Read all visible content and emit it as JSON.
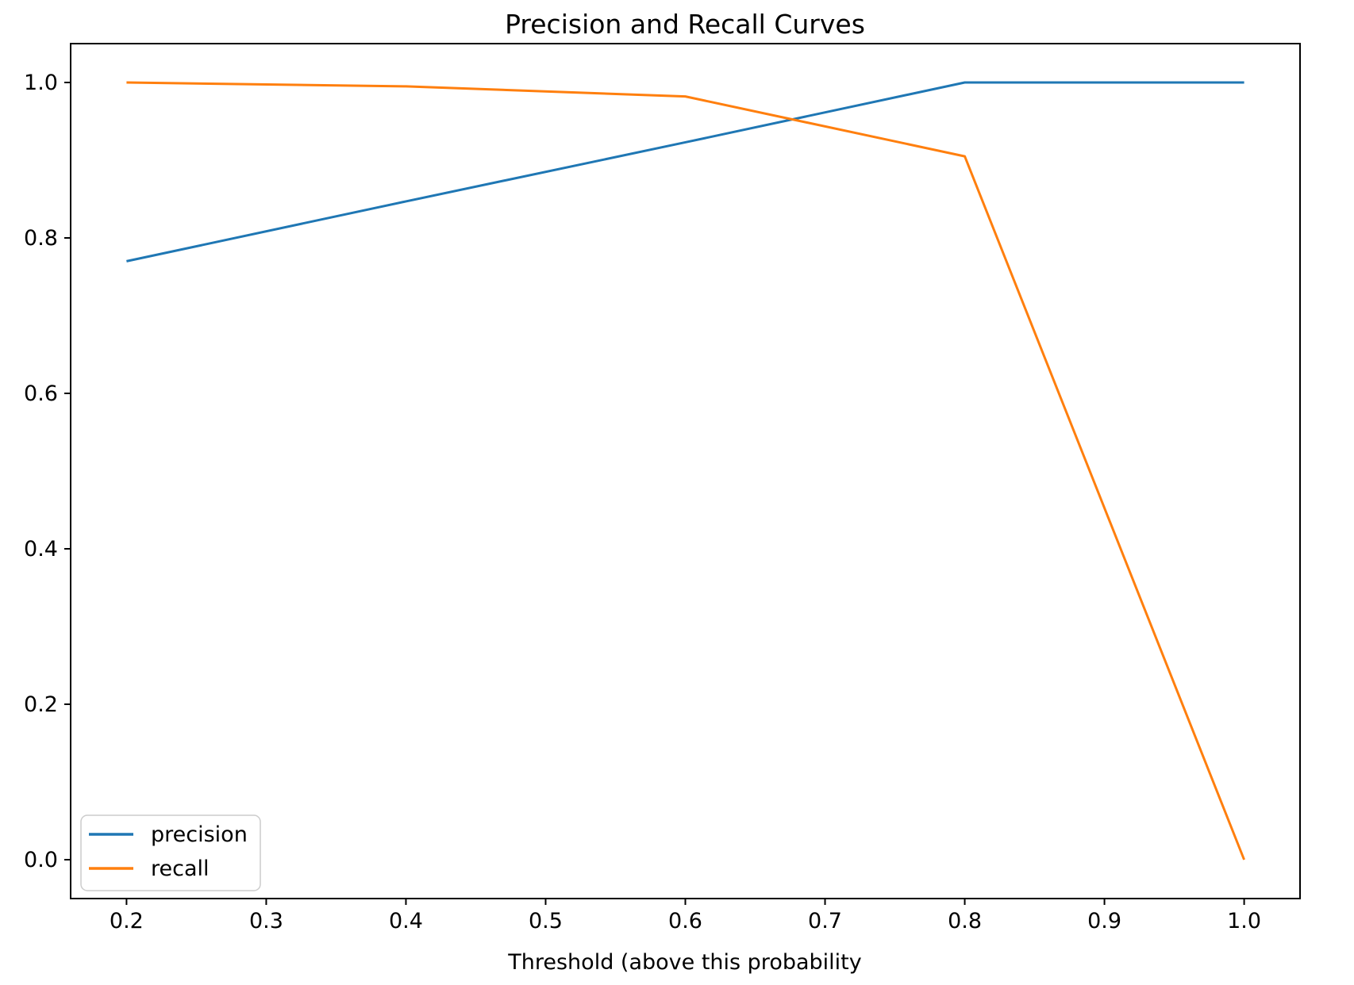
{
  "figure": {
    "background_color": "#ffffff",
    "spine_color": "#000000",
    "text_color": "#000000"
  },
  "chart_data": {
    "type": "line",
    "title": "Precision and Recall Curves",
    "xlabel": "Threshold (above this probability",
    "ylabel": "",
    "x": [
      0.2,
      0.4,
      0.6,
      0.8,
      1.0
    ],
    "series": [
      {
        "name": "precision",
        "color": "#1f77b4",
        "values": [
          0.77,
          0.847,
          0.923,
          1.0,
          1.0
        ]
      },
      {
        "name": "recall",
        "color": "#ff7f0e",
        "values": [
          1.0,
          0.995,
          0.982,
          0.905,
          0.0
        ]
      }
    ],
    "xlim": [
      0.16,
      1.04
    ],
    "ylim": [
      -0.05,
      1.05
    ],
    "xticks": [
      0.2,
      0.3,
      0.4,
      0.5,
      0.6,
      0.7,
      0.8,
      0.9,
      1.0
    ],
    "xtick_labels": [
      "0.2",
      "0.3",
      "0.4",
      "0.5",
      "0.6",
      "0.7",
      "0.8",
      "0.9",
      "1.0"
    ],
    "yticks": [
      0.0,
      0.2,
      0.4,
      0.6,
      0.8,
      1.0
    ],
    "ytick_labels": [
      "0.0",
      "0.2",
      "0.4",
      "0.6",
      "0.8",
      "1.0"
    ],
    "grid": false,
    "legend": {
      "position": "lower left",
      "entries": [
        "precision",
        "recall"
      ]
    }
  }
}
